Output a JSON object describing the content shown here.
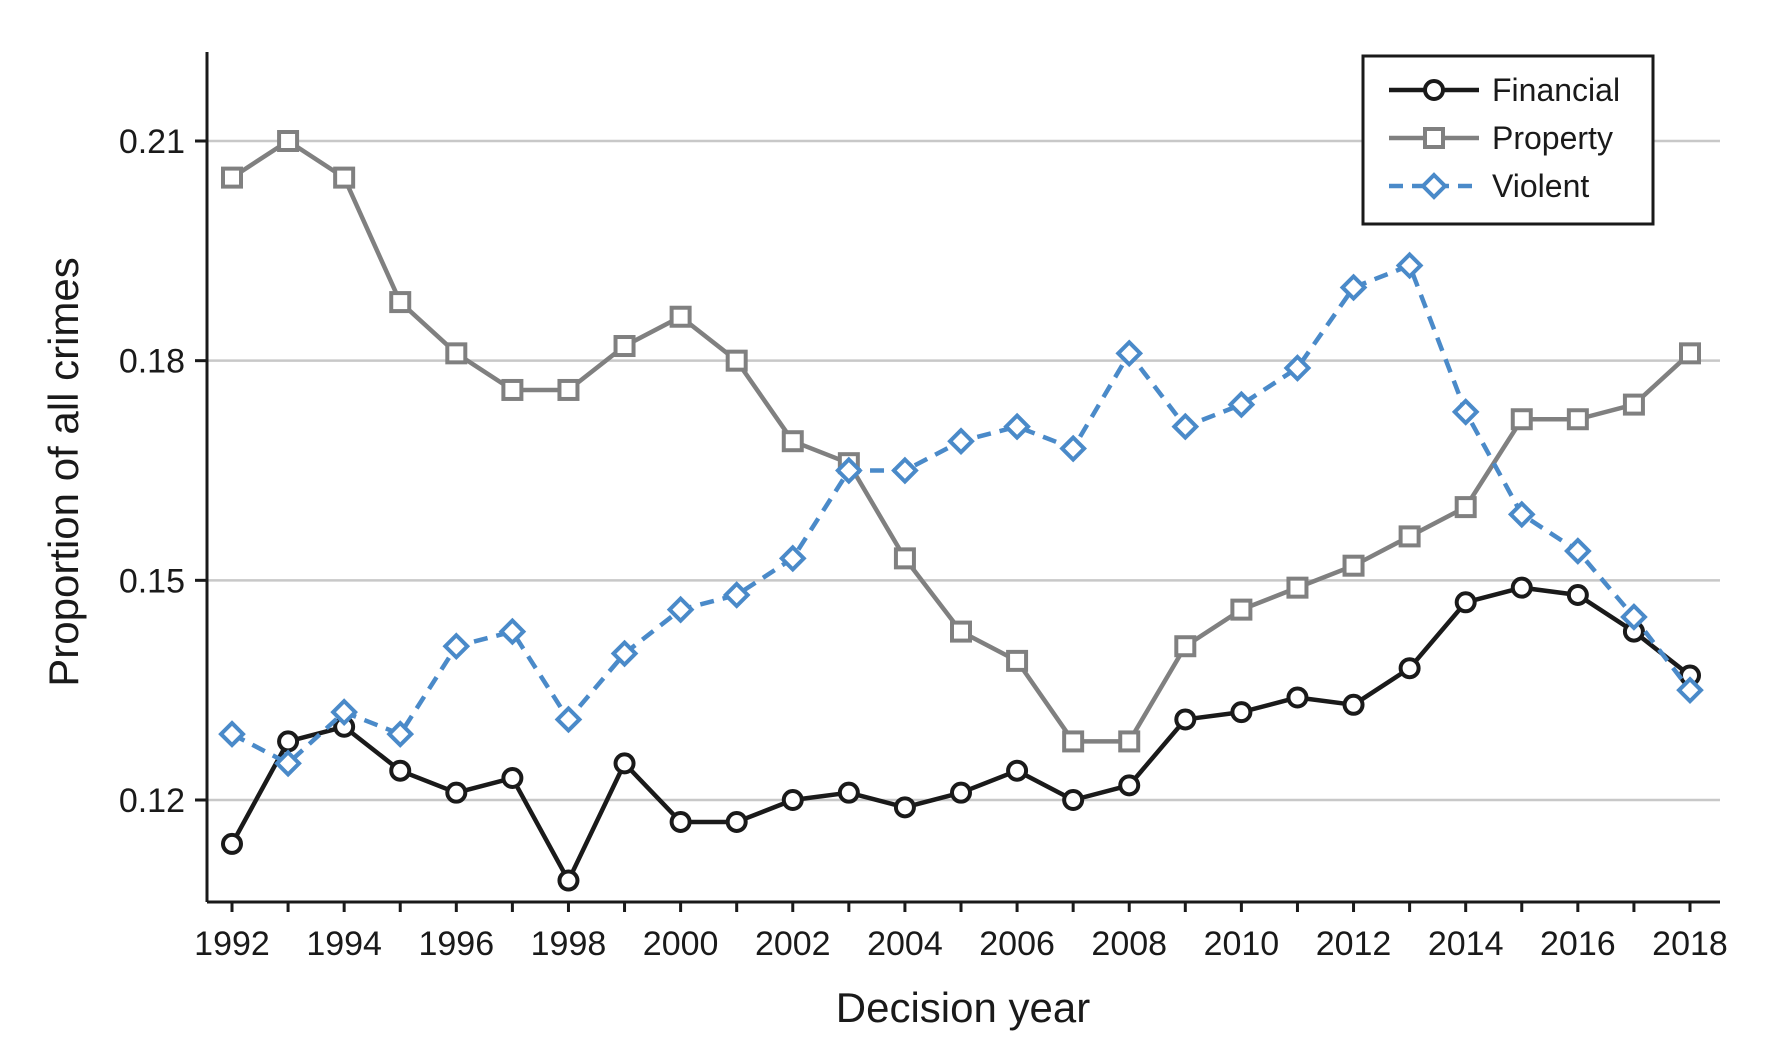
{
  "chart_data": {
    "type": "line",
    "title": "",
    "xlabel": "Decision year",
    "ylabel": "Proportion of all crimes",
    "x": [
      1992,
      1993,
      1994,
      1995,
      1996,
      1997,
      1998,
      1999,
      2000,
      2001,
      2002,
      2003,
      2004,
      2005,
      2006,
      2007,
      2008,
      2009,
      2010,
      2011,
      2012,
      2013,
      2014,
      2015,
      2016,
      2017,
      2018
    ],
    "xticks": [
      "1992",
      "1994",
      "1996",
      "1998",
      "2000",
      "2002",
      "2004",
      "2006",
      "2008",
      "2010",
      "2012",
      "2014",
      "2016",
      "2018"
    ],
    "yticks": [
      "0.12",
      "0.15",
      "0.18",
      "0.21"
    ],
    "ylim": [
      0.106,
      0.222
    ],
    "xlim": [
      1991.5,
      2018.6
    ],
    "grid": "horizontal",
    "legend_position": "top-right",
    "series": [
      {
        "name": "Financial",
        "color": "#1a1a1a",
        "marker": "circle",
        "dash": "solid",
        "values": [
          0.114,
          0.128,
          0.13,
          0.124,
          0.121,
          0.123,
          0.109,
          0.125,
          0.117,
          0.117,
          0.12,
          0.121,
          0.119,
          0.121,
          0.124,
          0.12,
          0.122,
          0.131,
          0.132,
          0.134,
          0.133,
          0.138,
          0.147,
          0.149,
          0.148,
          0.143,
          0.137
        ]
      },
      {
        "name": "Property",
        "color": "#808080",
        "marker": "square",
        "dash": "solid",
        "values": [
          0.205,
          0.21,
          0.205,
          0.188,
          0.181,
          0.176,
          0.176,
          0.182,
          0.186,
          0.18,
          0.169,
          0.166,
          0.153,
          0.143,
          0.139,
          0.128,
          0.128,
          0.141,
          0.146,
          0.149,
          0.152,
          0.156,
          0.16,
          0.172,
          0.172,
          0.174,
          0.181
        ]
      },
      {
        "name": "Violent",
        "color": "#4a8ac9",
        "marker": "diamond",
        "dash": "dashed",
        "values": [
          0.129,
          0.125,
          0.132,
          0.129,
          0.141,
          0.143,
          0.131,
          0.14,
          0.146,
          0.148,
          0.153,
          0.165,
          0.165,
          0.169,
          0.171,
          0.168,
          0.181,
          0.171,
          0.174,
          0.179,
          0.19,
          0.193,
          0.173,
          0.159,
          0.154,
          0.145,
          0.135
        ]
      }
    ]
  }
}
